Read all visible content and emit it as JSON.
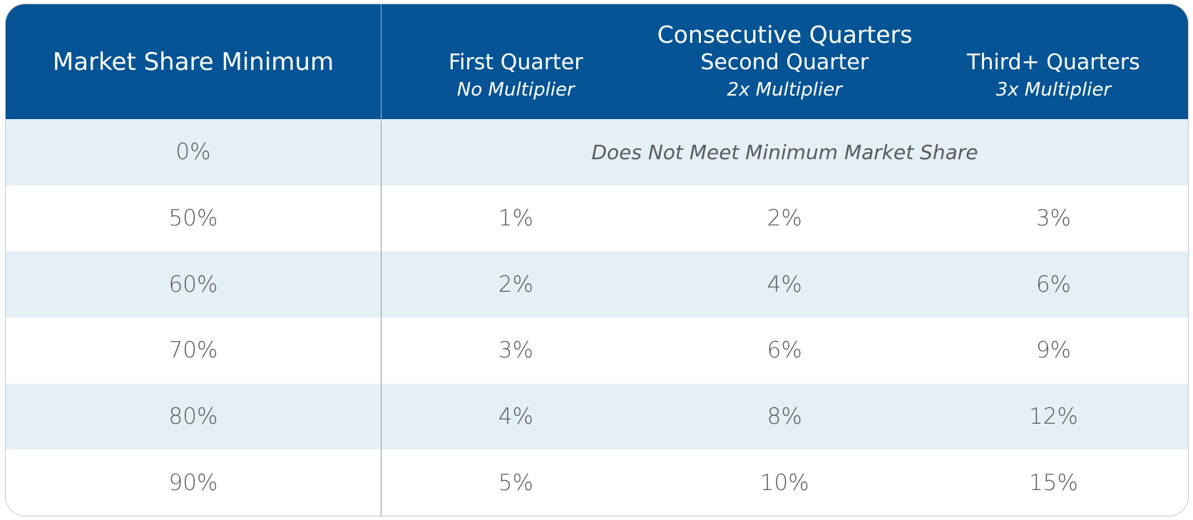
{
  "table": {
    "header": {
      "first": "Market Share Minimum",
      "group": "Consecutive Quarters",
      "columns": [
        {
          "title": "First Quarter",
          "subtitle": "No Multiplier"
        },
        {
          "title": "Second Quarter",
          "subtitle": "2x Multiplier"
        },
        {
          "title": "Third+ Quarters",
          "subtitle": "3x Multiplier"
        }
      ]
    },
    "rows": [
      [
        "0%",
        "Does Not Meet Minimum Market Share"
      ],
      [
        "50%",
        "1%",
        "2%",
        "3%"
      ],
      [
        "60%",
        "2%",
        "4%",
        "6%"
      ],
      [
        "70%",
        "3%",
        "6%",
        "9%"
      ],
      [
        "80%",
        "4%",
        "8%",
        "12%"
      ],
      [
        "90%",
        "5%",
        "10%",
        "15%"
      ]
    ]
  }
}
